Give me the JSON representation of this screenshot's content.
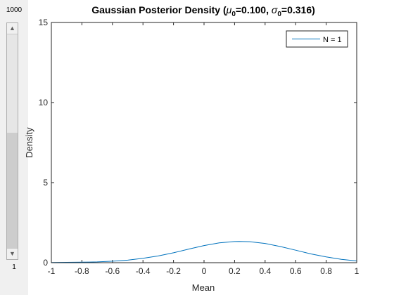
{
  "slider": {
    "max_label": "1000",
    "min_label": "1",
    "value": 1,
    "min": 1,
    "max": 1000,
    "up_icon": "triangle-up-icon",
    "down_icon": "triangle-down-icon"
  },
  "chart_data": {
    "type": "line",
    "title_main": "Gaussian Posterior Density (",
    "title_mu": "μ",
    "title_mu_sub": "0",
    "title_mu_val": "=0.100, ",
    "title_sigma": "σ",
    "title_sigma_sub": "0",
    "title_sigma_val": "=0.316)",
    "xlabel": "Mean",
    "ylabel": "Density",
    "xlim": [
      -1,
      1
    ],
    "ylim": [
      0,
      15
    ],
    "xticks": [
      -1,
      -0.8,
      -0.6,
      -0.4,
      -0.2,
      0,
      0.2,
      0.4,
      0.6,
      0.8,
      1
    ],
    "xtick_labels": [
      "-1",
      "-0.8",
      "-0.6",
      "-0.4",
      "-0.2",
      "0",
      "0.2",
      "0.4",
      "0.6",
      "0.8",
      "1"
    ],
    "yticks": [
      0,
      5,
      10,
      15
    ],
    "ytick_labels": [
      "0",
      "5",
      "10",
      "15"
    ],
    "grid": false,
    "legend_position": "top-right",
    "series": [
      {
        "name": "N = 1",
        "color": "#0072bd",
        "x": [
          -1,
          -0.9,
          -0.8,
          -0.7,
          -0.6,
          -0.5,
          -0.4,
          -0.3,
          -0.2,
          -0.1,
          0,
          0.1,
          0.2,
          0.23,
          0.3,
          0.4,
          0.5,
          0.6,
          0.7,
          0.8,
          0.9,
          1
        ],
        "y": [
          0.01,
          0.02,
          0.03,
          0.05,
          0.09,
          0.16,
          0.27,
          0.42,
          0.62,
          0.85,
          1.07,
          1.24,
          1.32,
          1.33,
          1.31,
          1.2,
          1.01,
          0.78,
          0.55,
          0.36,
          0.21,
          0.11
        ]
      }
    ]
  }
}
